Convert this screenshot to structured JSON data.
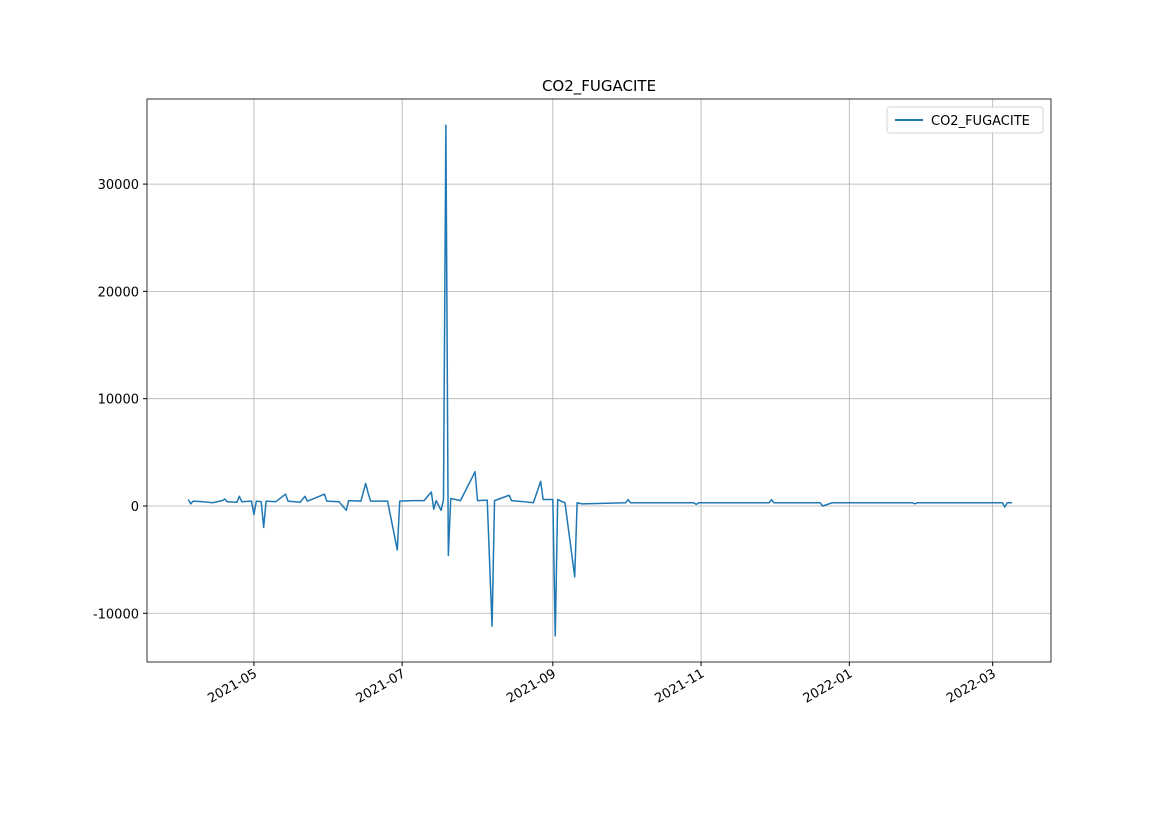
{
  "chart_data": {
    "type": "line",
    "title": "CO2_FUGACITE",
    "x": [
      "2021-04-04",
      "2021-04-05",
      "2021-04-06",
      "2021-04-10",
      "2021-04-14",
      "2021-04-18",
      "2021-04-19",
      "2021-04-20",
      "2021-04-24",
      "2021-04-25",
      "2021-04-26",
      "2021-04-30",
      "2021-05-01",
      "2021-05-02",
      "2021-05-04",
      "2021-05-05",
      "2021-05-06",
      "2021-05-10",
      "2021-05-14",
      "2021-05-15",
      "2021-05-20",
      "2021-05-22",
      "2021-05-23",
      "2021-05-30",
      "2021-05-31",
      "2021-06-05",
      "2021-06-08",
      "2021-06-09",
      "2021-06-14",
      "2021-06-16",
      "2021-06-17",
      "2021-06-18",
      "2021-06-25",
      "2021-06-29",
      "2021-06-30",
      "2021-07-05",
      "2021-07-10",
      "2021-07-13",
      "2021-07-14",
      "2021-07-15",
      "2021-07-17",
      "2021-07-18",
      "2021-07-19",
      "2021-07-20",
      "2021-07-21",
      "2021-07-25",
      "2021-07-31",
      "2021-08-01",
      "2021-08-05",
      "2021-08-07",
      "2021-08-08",
      "2021-08-14",
      "2021-08-15",
      "2021-08-20",
      "2021-08-24",
      "2021-08-27",
      "2021-08-28",
      "2021-09-01",
      "2021-09-02",
      "2021-09-03",
      "2021-09-06",
      "2021-09-10",
      "2021-09-11",
      "2021-09-13",
      "2021-10-01",
      "2021-10-02",
      "2021-10-03",
      "2021-10-29",
      "2021-10-30",
      "2021-10-31",
      "2021-11-29",
      "2021-11-30",
      "2021-12-01",
      "2021-12-20",
      "2021-12-21",
      "2021-12-25",
      "2022-01-27",
      "2022-01-28",
      "2022-01-29",
      "2022-03-05",
      "2022-03-06",
      "2022-03-07",
      "2022-03-09"
    ],
    "series": [
      {
        "name": "CO2_FUGACITE",
        "color": "#1f77b4",
        "values": [
          600,
          200,
          450,
          400,
          300,
          500,
          650,
          400,
          350,
          900,
          400,
          450,
          -800,
          450,
          400,
          -2000,
          450,
          400,
          1100,
          450,
          350,
          900,
          450,
          1100,
          450,
          400,
          -400,
          500,
          450,
          2100,
          1200,
          450,
          450,
          -4100,
          450,
          500,
          500,
          1300,
          -300,
          500,
          -400,
          600,
          35500,
          -4600,
          700,
          500,
          3200,
          500,
          550,
          -11200,
          500,
          1000,
          500,
          400,
          300,
          2300,
          600,
          600,
          -12100,
          600,
          300,
          -6600,
          300,
          200,
          300,
          600,
          300,
          300,
          150,
          300,
          300,
          600,
          300,
          300,
          0,
          300,
          300,
          200,
          300,
          300,
          -100,
          300,
          300
        ]
      }
    ],
    "xlim": [
      "2021-03-18",
      "2022-03-25"
    ],
    "xticks": [
      {
        "value": "2021-05-01",
        "label": "2021-05"
      },
      {
        "value": "2021-07-01",
        "label": "2021-07"
      },
      {
        "value": "2021-09-01",
        "label": "2021-09"
      },
      {
        "value": "2021-11-01",
        "label": "2021-11"
      },
      {
        "value": "2022-01-01",
        "label": "2022-01"
      },
      {
        "value": "2022-03-01",
        "label": "2022-03"
      }
    ],
    "ylim": [
      -14540,
      37930
    ],
    "yticks": [
      -10000,
      0,
      10000,
      20000,
      30000
    ],
    "grid": true,
    "legend": "upper right"
  }
}
